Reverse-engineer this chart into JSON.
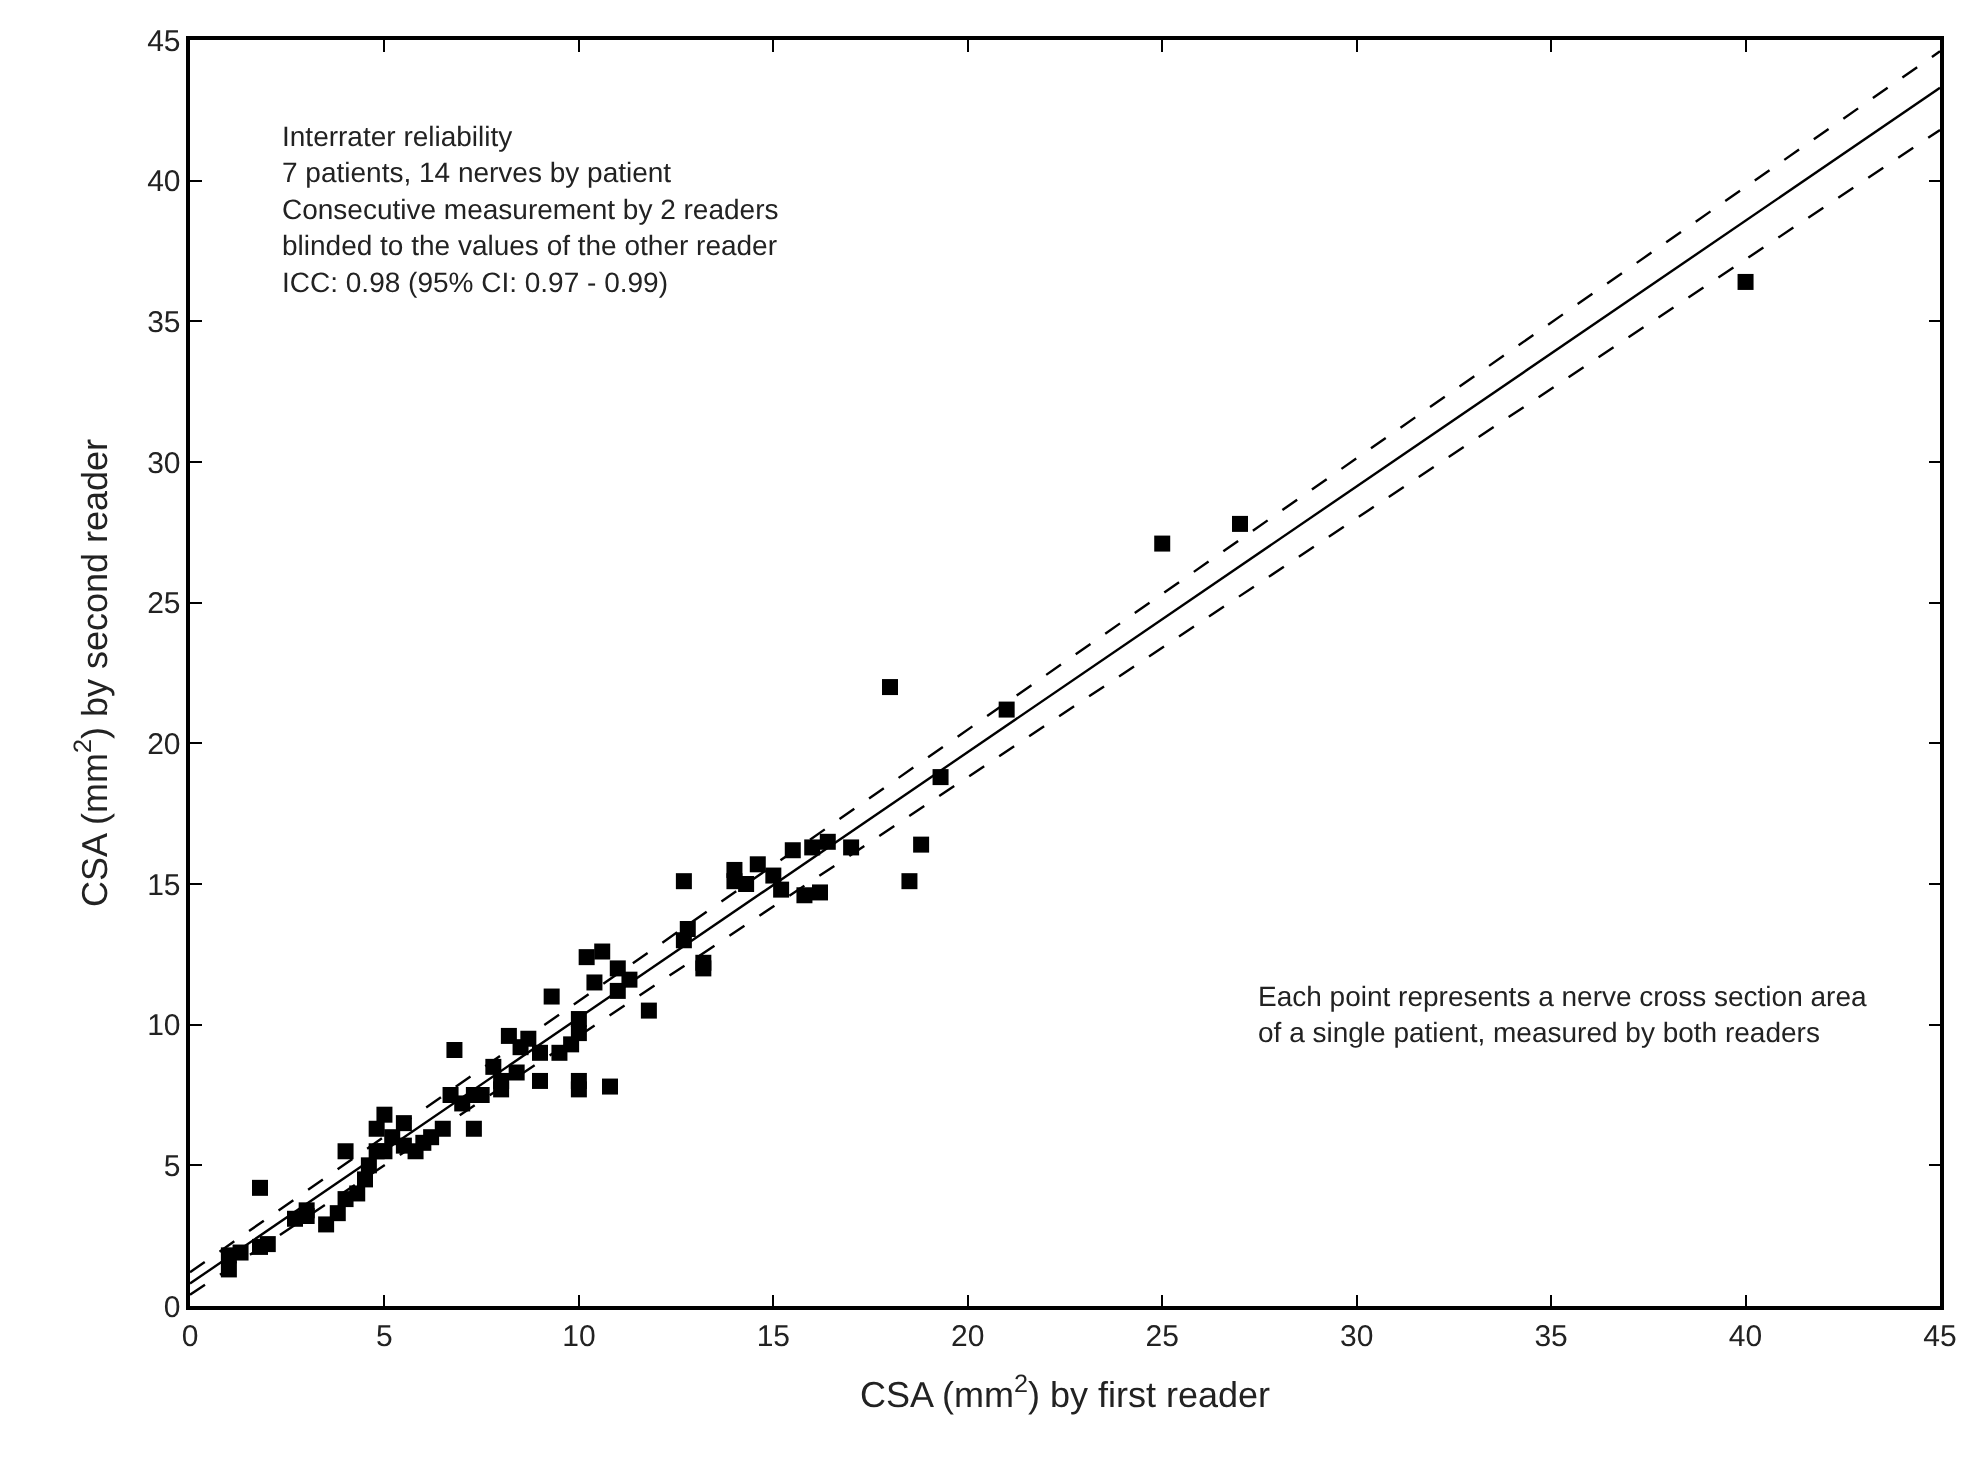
{
  "chart_data": {
    "type": "scatter",
    "xlabel": "CSA (mm$^{2}$) by first reader",
    "ylabel": "CSA (mm$^{2}$) by second reader",
    "xlim": [
      0,
      45
    ],
    "ylim": [
      0,
      45
    ],
    "xticks": [
      0,
      5,
      10,
      15,
      20,
      25,
      30,
      35,
      40,
      45
    ],
    "yticks": [
      0,
      5,
      10,
      15,
      20,
      25,
      30,
      35,
      40,
      45
    ],
    "marker": "square",
    "annotations": [
      "Interrater reliability\n7 patients, 14 nerves by patient\nConsecutive measurement by 2 readers\nblinded to the values of the other reader\nICC: 0.98 (95% CI: 0.97 - 0.99)",
      "Each point represents a nerve cross section area\nof a single patient, measured by both readers"
    ],
    "series": [
      {
        "color": "#000000",
        "x": [
          1,
          1,
          1.3,
          1.8,
          2,
          1.8,
          2.7,
          3,
          3,
          3.5,
          3.8,
          4,
          4,
          4.3,
          4.5,
          4.6,
          4.8,
          4.8,
          5,
          5,
          5.2,
          5.5,
          5.5,
          5.8,
          6,
          6.2,
          6.5,
          6.7,
          6.8,
          7,
          7.3,
          7.3,
          7.5,
          7.8,
          8,
          8,
          8.2,
          8.4,
          8.5,
          8.7,
          9,
          9,
          9.3,
          9.5,
          9.8,
          10,
          10,
          10,
          10,
          10.2,
          10.4,
          10.6,
          10.8,
          11,
          11,
          11.3,
          11.8,
          12.7,
          12.7,
          12.8,
          13.2,
          13.2,
          14,
          14,
          14.3,
          14.6,
          15,
          15.2,
          15.5,
          15.8,
          16,
          16.2,
          16.4,
          17,
          18,
          18.5,
          18.8,
          19.3,
          21,
          25,
          27,
          40
        ],
        "values": [
          1.3,
          1.8,
          1.9,
          2.1,
          2.2,
          4.2,
          3.1,
          3.4,
          3.2,
          2.9,
          3.3,
          3.8,
          5.5,
          4.0,
          4.5,
          5.0,
          5.5,
          6.3,
          6.8,
          5.5,
          6.0,
          5.7,
          6.5,
          5.5,
          5.8,
          6.0,
          6.3,
          7.5,
          9.1,
          7.2,
          6.3,
          7.5,
          7.5,
          8.5,
          8.0,
          7.7,
          9.6,
          8.3,
          9.2,
          9.5,
          8.0,
          9.0,
          11.0,
          9.0,
          9.3,
          10.2,
          9.7,
          8.0,
          7.7,
          12.4,
          11.5,
          12.6,
          7.8,
          11.2,
          12.0,
          11.6,
          10.5,
          13.0,
          15.1,
          13.4,
          12.2,
          12.0,
          15.1,
          15.5,
          15.0,
          15.7,
          15.3,
          14.8,
          16.2,
          14.6,
          16.3,
          14.7,
          16.5,
          16.3,
          22,
          15.1,
          16.4,
          18.8,
          21.2,
          27.1,
          27.8,
          36.4
        ]
      },
      {
        "type": "line",
        "color": "#000000",
        "line_style": "solid",
        "marker": "none",
        "x": [
          0,
          45
        ],
        "values": [
          0.8,
          43.3
        ]
      },
      {
        "type": "line",
        "color": "#000000",
        "line_style": "dashed",
        "marker": "none",
        "x": [
          0,
          45
        ],
        "values": [
          1.2,
          44.6
        ]
      },
      {
        "type": "line",
        "color": "#000000",
        "line_style": "dashed",
        "marker": "none",
        "x": [
          0,
          45
        ],
        "values": [
          0.4,
          41.8
        ]
      }
    ]
  }
}
